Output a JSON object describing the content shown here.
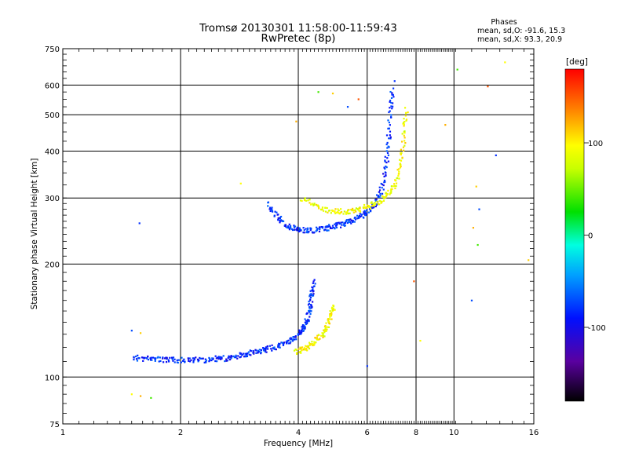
{
  "chart_data": {
    "type": "scatter",
    "title": "Tromsø 20130301 11:58:00-11:59:43",
    "subtitle": "RwPretec (8p)",
    "xlabel": "Frequency [MHz]",
    "ylabel": "Stationary phase Virtual Height [km]",
    "x_scale": "log",
    "y_scale": "log",
    "xlim": [
      1,
      16
    ],
    "ylim": [
      75,
      750
    ],
    "x_ticks": [
      1,
      2,
      4,
      6,
      8,
      10,
      16
    ],
    "y_ticks": [
      75,
      100,
      200,
      300,
      400,
      500,
      600,
      750
    ],
    "grid": true,
    "stats": {
      "heading": "Phases",
      "line_o": "mean, sd,O: -91.6, 15.3",
      "line_x": "mean, sd,X:  93.3, 20.9"
    },
    "colorbar": {
      "label": "[deg]",
      "range": [
        -180,
        180
      ],
      "ticks": [
        -100,
        0,
        100
      ],
      "colormap": "rainbow"
    },
    "series": [
      {
        "trace": "E/F1 low trace O",
        "points": [
          [
            1.52,
            113
          ],
          [
            1.58,
            112
          ],
          [
            1.65,
            112
          ],
          [
            1.72,
            112
          ],
          [
            1.8,
            111
          ],
          [
            1.88,
            111
          ],
          [
            1.95,
            111
          ],
          [
            2.05,
            111
          ],
          [
            2.15,
            111
          ],
          [
            2.25,
            111
          ],
          [
            2.35,
            111
          ],
          [
            2.45,
            112
          ],
          [
            2.55,
            112
          ],
          [
            2.65,
            112
          ],
          [
            2.75,
            113
          ],
          [
            2.85,
            114
          ],
          [
            2.95,
            115
          ],
          [
            3.05,
            116
          ],
          [
            3.15,
            117
          ],
          [
            3.25,
            118
          ],
          [
            3.35,
            119
          ],
          [
            3.45,
            120
          ],
          [
            3.55,
            121
          ],
          [
            3.65,
            122
          ],
          [
            3.75,
            124
          ],
          [
            3.85,
            126
          ],
          [
            3.95,
            128
          ],
          [
            4.05,
            131
          ],
          [
            4.1,
            134
          ],
          [
            4.15,
            137
          ],
          [
            4.2,
            141
          ],
          [
            4.25,
            146
          ],
          [
            4.28,
            152
          ],
          [
            4.3,
            158
          ],
          [
            4.32,
            165
          ],
          [
            4.35,
            172
          ],
          [
            4.4,
            181
          ]
        ],
        "phase_deg": -100
      },
      {
        "trace": "E/F1 low trace X",
        "points": [
          [
            3.95,
            117
          ],
          [
            4.05,
            118
          ],
          [
            4.15,
            119
          ],
          [
            4.25,
            121
          ],
          [
            4.35,
            123
          ],
          [
            4.45,
            125
          ],
          [
            4.55,
            128
          ],
          [
            4.65,
            131
          ],
          [
            4.72,
            135
          ],
          [
            4.78,
            140
          ],
          [
            4.83,
            145
          ],
          [
            4.88,
            150
          ],
          [
            4.92,
            156
          ]
        ],
        "phase_deg": 95
      },
      {
        "trace": "F2 trace O",
        "points": [
          [
            3.35,
            290
          ],
          [
            3.45,
            275
          ],
          [
            3.55,
            265
          ],
          [
            3.65,
            258
          ],
          [
            3.75,
            253
          ],
          [
            3.85,
            250
          ],
          [
            3.95,
            248
          ],
          [
            4.05,
            246
          ],
          [
            4.2,
            246
          ],
          [
            4.35,
            246
          ],
          [
            4.5,
            247
          ],
          [
            4.65,
            248
          ],
          [
            4.8,
            250
          ],
          [
            4.95,
            252
          ],
          [
            5.1,
            254
          ],
          [
            5.25,
            256
          ],
          [
            5.4,
            259
          ],
          [
            5.55,
            262
          ],
          [
            5.7,
            265
          ],
          [
            5.85,
            270
          ],
          [
            6.0,
            275
          ],
          [
            6.15,
            282
          ],
          [
            6.3,
            292
          ],
          [
            6.45,
            305
          ],
          [
            6.55,
            322
          ],
          [
            6.65,
            345
          ],
          [
            6.72,
            375
          ],
          [
            6.78,
            410
          ],
          [
            6.83,
            450
          ],
          [
            6.88,
            500
          ],
          [
            6.92,
            545
          ],
          [
            6.95,
            590
          ]
        ],
        "phase_deg": -100
      },
      {
        "trace": "F2 trace X",
        "points": [
          [
            4.1,
            300
          ],
          [
            4.3,
            292
          ],
          [
            4.5,
            285
          ],
          [
            4.7,
            280
          ],
          [
            4.9,
            277
          ],
          [
            5.1,
            276
          ],
          [
            5.3,
            276
          ],
          [
            5.5,
            277
          ],
          [
            5.7,
            279
          ],
          [
            5.9,
            282
          ],
          [
            6.1,
            286
          ],
          [
            6.3,
            290
          ],
          [
            6.5,
            296
          ],
          [
            6.7,
            303
          ],
          [
            6.9,
            312
          ],
          [
            7.05,
            325
          ],
          [
            7.2,
            345
          ],
          [
            7.3,
            370
          ],
          [
            7.38,
            400
          ],
          [
            7.45,
            440
          ],
          [
            7.5,
            480
          ],
          [
            7.55,
            520
          ]
        ],
        "phase_deg": 90
      },
      {
        "trace": "noise",
        "points": [
          [
            1.57,
            257
          ],
          [
            2.85,
            328
          ],
          [
            3.95,
            480
          ],
          [
            4.5,
            575
          ],
          [
            5.35,
            525
          ],
          [
            4.9,
            570
          ],
          [
            5.7,
            550
          ],
          [
            7.05,
            615
          ],
          [
            8.2,
            125
          ],
          [
            9.5,
            470
          ],
          [
            10.2,
            660
          ],
          [
            11.1,
            160
          ],
          [
            11.4,
            322
          ],
          [
            12.2,
            595
          ],
          [
            12.8,
            390
          ],
          [
            13.5,
            690
          ],
          [
            11.2,
            250
          ],
          [
            11.5,
            225
          ],
          [
            11.6,
            280
          ],
          [
            15.5,
            205
          ],
          [
            7.9,
            180
          ],
          [
            6.0,
            107
          ],
          [
            1.5,
            90
          ],
          [
            1.58,
            89
          ],
          [
            1.68,
            88
          ],
          [
            1.5,
            133
          ],
          [
            1.58,
            131
          ]
        ],
        "phase_deg": null
      }
    ]
  }
}
